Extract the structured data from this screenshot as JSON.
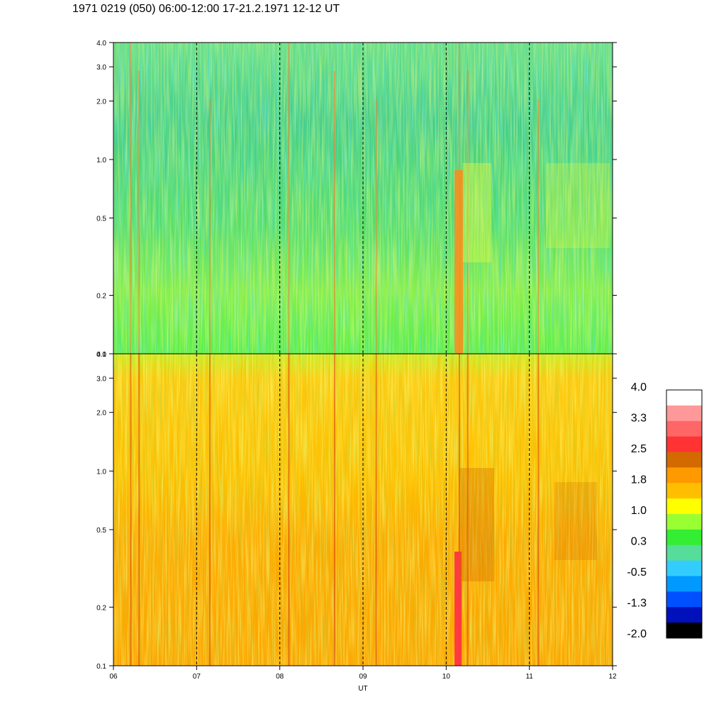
{
  "title": "1971 0219 (050) 06:00-12:00 17-21.2.1971 12-12 UT",
  "chart_data": {
    "type": "heatmap",
    "xlabel": "UT",
    "x_tick_labels": [
      "06",
      "07",
      "08",
      "09",
      "10",
      "11",
      "12"
    ],
    "x_range": [
      6,
      12
    ],
    "y_scale": "log",
    "dashed_vertical_lines_at": [
      7,
      8,
      9,
      10,
      11
    ],
    "panels": [
      {
        "name": "upper",
        "y_range": [
          0.1,
          4.0
        ],
        "y_tick_labels": [
          "4.0",
          "3.0",
          "2.0",
          "1.0",
          "0.5",
          "0.2",
          "0.1"
        ],
        "y_tick_values": [
          4.0,
          3.0,
          2.0,
          1.0,
          0.5,
          0.2,
          0.1
        ],
        "dominant_levels": "green / light-green, with blue-cyan patches at mid frequencies"
      },
      {
        "name": "lower",
        "y_range": [
          0.1,
          4.0
        ],
        "y_tick_labels": [
          "4.0",
          "3.0",
          "2.0",
          "1.0",
          "0.5",
          "0.2",
          "0.1"
        ],
        "y_tick_values": [
          4.0,
          3.0,
          2.0,
          1.0,
          0.5,
          0.2,
          0.1
        ],
        "dominant_levels": "yellow / orange, with a red band near 10:10 UT at low frequencies"
      }
    ],
    "colorbar": {
      "tick_labels": [
        "4.0",
        "3.3",
        "2.5",
        "1.8",
        "1.0",
        "0.3",
        "-0.5",
        "-1.3",
        "-2.0"
      ],
      "colors_top_to_bottom": [
        "#ffffff",
        "#ff9999",
        "#ff6666",
        "#ff3333",
        "#d26a00",
        "#ff9900",
        "#ffbf00",
        "#ffff00",
        "#99ff33",
        "#33ee33",
        "#55dd99",
        "#33ccff",
        "#0099ff",
        "#0050ff",
        "#0010bb",
        "#000000"
      ]
    }
  }
}
